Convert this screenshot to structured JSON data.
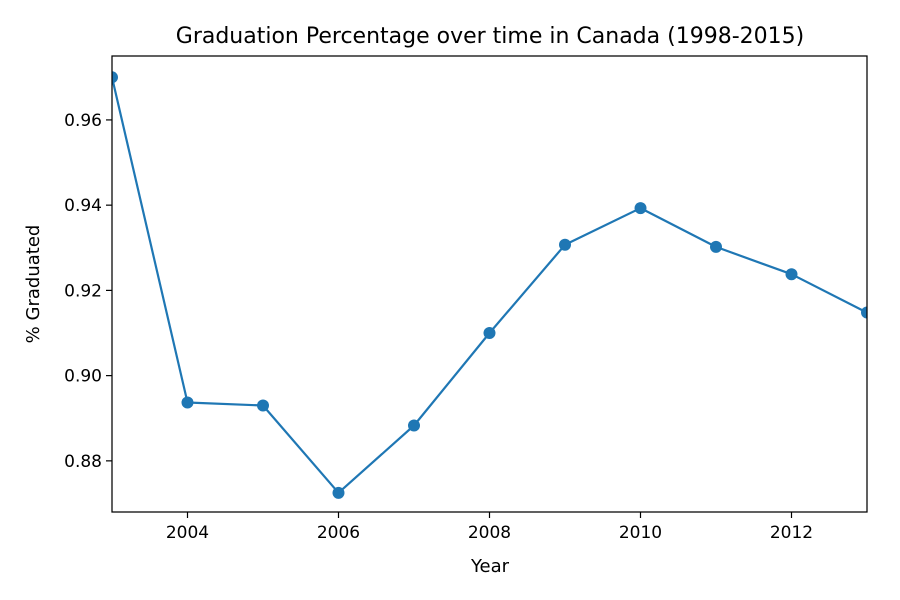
{
  "chart_data": {
    "type": "line",
    "title": "Graduation Percentage over time in Canada (1998-2015)",
    "xlabel": "Year",
    "ylabel": "% Graduated",
    "xlim": [
      2003,
      2013
    ],
    "ylim": [
      0.868,
      0.975
    ],
    "xticks": [
      2004,
      2006,
      2008,
      2010,
      2012
    ],
    "yticks": [
      0.88,
      0.9,
      0.92,
      0.94,
      0.96
    ],
    "xtick_labels": [
      "2004",
      "2006",
      "2008",
      "2010",
      "2012"
    ],
    "ytick_labels": [
      "0.88",
      "0.90",
      "0.92",
      "0.94",
      "0.96"
    ],
    "grid": false,
    "series": [
      {
        "color": "#1f77b4",
        "marker": "circle",
        "x": [
          2003,
          2004,
          2005,
          2006,
          2007,
          2008,
          2009,
          2010,
          2011,
          2012,
          2013
        ],
        "y": [
          0.97,
          0.8937,
          0.893,
          0.8725,
          0.8883,
          0.91,
          0.9307,
          0.9393,
          0.9302,
          0.9238,
          0.9148
        ]
      }
    ]
  }
}
